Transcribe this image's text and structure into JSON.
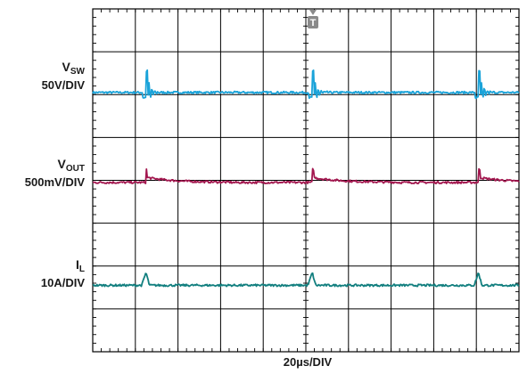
{
  "chart_data": {
    "type": "line",
    "title": "",
    "xlabel": "20µs/DIV",
    "x_divisions": 10,
    "y_divisions": 8,
    "grid": true,
    "trigger_marker": "T",
    "series": [
      {
        "name_main": "V",
        "name_sub": "SW",
        "scale": "50V/DIV",
        "color": "#1aa3d9",
        "baseline_div": 6.05,
        "events_div": [
          1.25,
          5.15,
          9.05
        ],
        "event_kind": "switch-edge",
        "spike_height_div": 0.5
      },
      {
        "name_main": "V",
        "name_sub": "OUT",
        "scale": "500mV/DIV",
        "color": "#a3174f",
        "baseline_div": 3.95,
        "events_div": [
          1.25,
          5.15,
          9.05
        ],
        "event_kind": "step",
        "step_height_div": 0.12
      },
      {
        "name_main": "I",
        "name_sub": "L",
        "scale": "10A/DIV",
        "color": "#127f7f",
        "baseline_div": 1.55,
        "events_div": [
          1.25,
          5.15,
          9.05
        ],
        "event_kind": "spike",
        "spike_height_div": 0.3
      }
    ]
  }
}
